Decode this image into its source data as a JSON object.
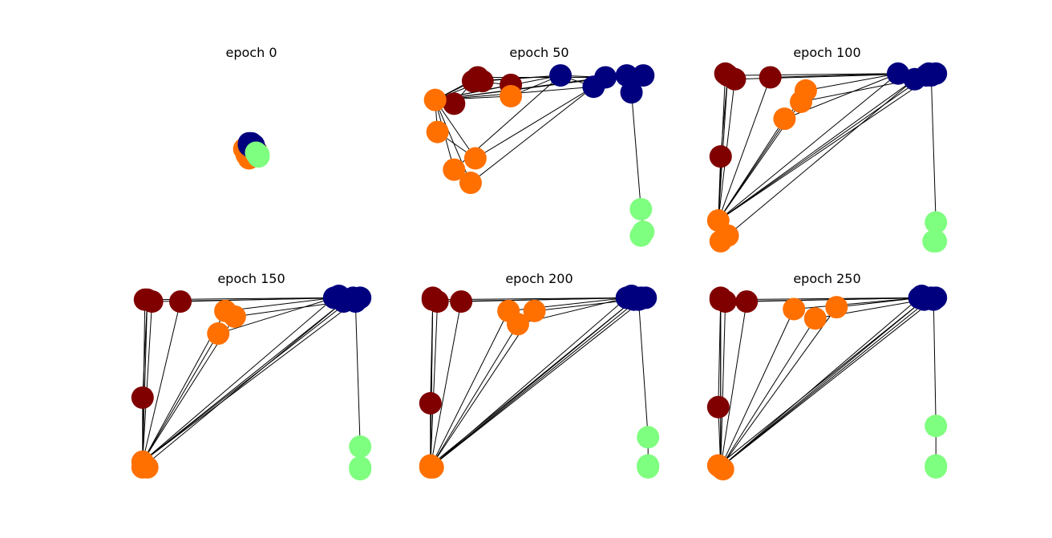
{
  "chart_data": [
    {
      "type": "network",
      "title": "epoch 0",
      "series": [
        {
          "color": "#800000",
          "x": [
            0.5,
            0.51,
            0.52,
            0.49,
            0.5
          ],
          "y": [
            0.55,
            0.56,
            0.54,
            0.55,
            0.57
          ]
        },
        {
          "color": "#ff7000",
          "x": [
            0.48,
            0.49,
            0.47,
            0.48,
            0.5,
            0.49
          ],
          "y": [
            0.54,
            0.5,
            0.55,
            0.52,
            0.53,
            0.56
          ]
        },
        {
          "color": "#00007f",
          "x": [
            0.49,
            0.5,
            0.5,
            0.51,
            0.49,
            0.5
          ],
          "y": [
            0.57,
            0.58,
            0.56,
            0.57,
            0.58,
            0.57
          ]
        },
        {
          "color": "#7fff7f",
          "x": [
            0.53,
            0.52,
            0.53
          ],
          "y": [
            0.52,
            0.53,
            0.51
          ]
        }
      ],
      "edges": [
        [
          5,
          6
        ],
        [
          5,
          7
        ],
        [
          6,
          7
        ],
        [
          5,
          0
        ],
        [
          5,
          1
        ],
        [
          5,
          3
        ],
        [
          5,
          4
        ],
        [
          5,
          2
        ],
        [
          5,
          11
        ],
        [
          5,
          12
        ],
        [
          5,
          13
        ],
        [
          5,
          14
        ],
        [
          5,
          8
        ],
        [
          5,
          9
        ],
        [
          5,
          10
        ],
        [
          0,
          11
        ],
        [
          1,
          13
        ],
        [
          2,
          11
        ],
        [
          8,
          11
        ],
        [
          9,
          12
        ],
        [
          10,
          11
        ],
        [
          3,
          0
        ],
        [
          4,
          0
        ],
        [
          11,
          12
        ],
        [
          11,
          13
        ],
        [
          13,
          14
        ],
        [
          14,
          15
        ],
        [
          15,
          16
        ],
        [
          16,
          17
        ],
        [
          17,
          18
        ],
        [
          18,
          19
        ],
        [
          7,
          12
        ]
      ]
    },
    {
      "type": "network",
      "title": "epoch 50",
      "series": [
        {
          "color": "#800000",
          "x": [
            0.22,
            0.24,
            0.26,
            0.38,
            0.14
          ],
          "y": [
            0.91,
            0.93,
            0.91,
            0.89,
            0.79
          ]
        },
        {
          "color": "#ff7000",
          "x": [
            0.06,
            0.07,
            0.23,
            0.14,
            0.21,
            0.38
          ],
          "y": [
            0.81,
            0.64,
            0.5,
            0.44,
            0.37,
            0.83
          ]
        },
        {
          "color": "#00007f",
          "x": [
            0.59,
            0.73,
            0.78,
            0.87,
            0.94,
            0.89
          ],
          "y": [
            0.94,
            0.88,
            0.93,
            0.94,
            0.94,
            0.85
          ]
        },
        {
          "color": "#7fff7f",
          "x": [
            0.93,
            0.94,
            0.93
          ],
          "y": [
            0.23,
            0.11,
            0.09
          ]
        }
      ],
      "edges": [
        [
          5,
          6
        ],
        [
          5,
          7
        ],
        [
          6,
          7
        ],
        [
          5,
          0
        ],
        [
          5,
          1
        ],
        [
          5,
          3
        ],
        [
          5,
          4
        ],
        [
          5,
          2
        ],
        [
          5,
          11
        ],
        [
          5,
          12
        ],
        [
          5,
          13
        ],
        [
          5,
          14
        ],
        [
          5,
          8
        ],
        [
          5,
          9
        ],
        [
          5,
          10
        ],
        [
          0,
          11
        ],
        [
          1,
          13
        ],
        [
          2,
          11
        ],
        [
          8,
          11
        ],
        [
          9,
          12
        ],
        [
          10,
          11
        ],
        [
          3,
          0
        ],
        [
          4,
          0
        ],
        [
          11,
          12
        ],
        [
          11,
          13
        ],
        [
          13,
          14
        ],
        [
          14,
          15
        ],
        [
          15,
          16
        ],
        [
          16,
          17
        ],
        [
          17,
          18
        ],
        [
          18,
          19
        ],
        [
          7,
          12
        ]
      ]
    },
    {
      "type": "network",
      "title": "epoch 100",
      "series": [
        {
          "color": "#800000",
          "x": [
            0.08,
            0.11,
            0.26,
            0.05,
            0.07
          ],
          "y": [
            0.94,
            0.92,
            0.93,
            0.51,
            0.95
          ]
        },
        {
          "color": "#ff7000",
          "x": [
            0.04,
            0.08,
            0.05,
            0.41,
            0.39,
            0.32
          ],
          "y": [
            0.17,
            0.09,
            0.06,
            0.86,
            0.8,
            0.71
          ]
        },
        {
          "color": "#00007f",
          "x": [
            0.8,
            0.87,
            0.93,
            0.96,
            0.92,
            0.94
          ],
          "y": [
            0.95,
            0.92,
            0.95,
            0.95,
            0.94,
            0.94
          ]
        },
        {
          "color": "#7fff7f",
          "x": [
            0.96,
            0.95,
            0.96
          ],
          "y": [
            0.16,
            0.06,
            0.06
          ]
        }
      ],
      "edges": [
        [
          5,
          6
        ],
        [
          5,
          7
        ],
        [
          6,
          7
        ],
        [
          5,
          0
        ],
        [
          5,
          1
        ],
        [
          5,
          3
        ],
        [
          5,
          4
        ],
        [
          5,
          2
        ],
        [
          5,
          11
        ],
        [
          5,
          12
        ],
        [
          5,
          13
        ],
        [
          5,
          14
        ],
        [
          5,
          8
        ],
        [
          5,
          9
        ],
        [
          5,
          10
        ],
        [
          0,
          11
        ],
        [
          1,
          13
        ],
        [
          2,
          11
        ],
        [
          8,
          11
        ],
        [
          9,
          12
        ],
        [
          10,
          11
        ],
        [
          3,
          0
        ],
        [
          4,
          0
        ],
        [
          11,
          12
        ],
        [
          11,
          13
        ],
        [
          13,
          14
        ],
        [
          14,
          15
        ],
        [
          15,
          16
        ],
        [
          16,
          17
        ],
        [
          17,
          18
        ],
        [
          18,
          19
        ],
        [
          7,
          12
        ]
      ]
    },
    {
      "type": "network",
      "title": "epoch 150",
      "series": [
        {
          "color": "#800000",
          "x": [
            0.06,
            0.08,
            0.2,
            0.04,
            0.05
          ],
          "y": [
            0.95,
            0.94,
            0.94,
            0.43,
            0.95
          ]
        },
        {
          "color": "#ff7000",
          "x": [
            0.04,
            0.06,
            0.04,
            0.39,
            0.43,
            0.36
          ],
          "y": [
            0.09,
            0.06,
            0.06,
            0.89,
            0.86,
            0.77
          ]
        },
        {
          "color": "#00007f",
          "x": [
            0.85,
            0.89,
            0.93,
            0.96,
            0.87,
            0.94
          ],
          "y": [
            0.96,
            0.94,
            0.96,
            0.96,
            0.97,
            0.94
          ]
        },
        {
          "color": "#7fff7f",
          "x": [
            0.96,
            0.96,
            0.96
          ],
          "y": [
            0.17,
            0.06,
            0.05
          ]
        }
      ],
      "edges": [
        [
          5,
          6
        ],
        [
          5,
          7
        ],
        [
          6,
          7
        ],
        [
          5,
          0
        ],
        [
          5,
          1
        ],
        [
          5,
          3
        ],
        [
          5,
          4
        ],
        [
          5,
          2
        ],
        [
          5,
          11
        ],
        [
          5,
          12
        ],
        [
          5,
          13
        ],
        [
          5,
          14
        ],
        [
          5,
          8
        ],
        [
          5,
          9
        ],
        [
          5,
          10
        ],
        [
          0,
          11
        ],
        [
          1,
          13
        ],
        [
          2,
          11
        ],
        [
          8,
          11
        ],
        [
          9,
          12
        ],
        [
          10,
          11
        ],
        [
          3,
          0
        ],
        [
          4,
          0
        ],
        [
          11,
          12
        ],
        [
          11,
          13
        ],
        [
          13,
          14
        ],
        [
          14,
          15
        ],
        [
          15,
          16
        ],
        [
          16,
          17
        ],
        [
          17,
          18
        ],
        [
          18,
          19
        ],
        [
          7,
          12
        ]
      ]
    },
    {
      "type": "network",
      "title": "epoch 200",
      "series": [
        {
          "color": "#800000",
          "x": [
            0.05,
            0.07,
            0.17,
            0.04,
            0.05
          ],
          "y": [
            0.95,
            0.94,
            0.94,
            0.4,
            0.96
          ]
        },
        {
          "color": "#ff7000",
          "x": [
            0.04,
            0.05,
            0.04,
            0.37,
            0.48,
            0.41
          ],
          "y": [
            0.06,
            0.06,
            0.07,
            0.89,
            0.89,
            0.82
          ]
        },
        {
          "color": "#00007f",
          "x": [
            0.87,
            0.9,
            0.93,
            0.95,
            0.89,
            0.92
          ],
          "y": [
            0.96,
            0.95,
            0.96,
            0.96,
            0.97,
            0.95
          ]
        },
        {
          "color": "#7fff7f",
          "x": [
            0.96,
            0.96,
            0.96
          ],
          "y": [
            0.22,
            0.07,
            0.06
          ]
        }
      ],
      "edges": [
        [
          5,
          6
        ],
        [
          5,
          7
        ],
        [
          6,
          7
        ],
        [
          5,
          0
        ],
        [
          5,
          1
        ],
        [
          5,
          3
        ],
        [
          5,
          4
        ],
        [
          5,
          2
        ],
        [
          5,
          11
        ],
        [
          5,
          12
        ],
        [
          5,
          13
        ],
        [
          5,
          14
        ],
        [
          5,
          8
        ],
        [
          5,
          9
        ],
        [
          5,
          10
        ],
        [
          0,
          11
        ],
        [
          1,
          13
        ],
        [
          2,
          11
        ],
        [
          8,
          11
        ],
        [
          9,
          12
        ],
        [
          10,
          11
        ],
        [
          3,
          0
        ],
        [
          4,
          0
        ],
        [
          11,
          12
        ],
        [
          11,
          13
        ],
        [
          13,
          14
        ],
        [
          14,
          15
        ],
        [
          15,
          16
        ],
        [
          16,
          17
        ],
        [
          17,
          18
        ],
        [
          18,
          19
        ],
        [
          7,
          12
        ]
      ]
    },
    {
      "type": "network",
      "title": "epoch 250",
      "series": [
        {
          "color": "#800000",
          "x": [
            0.05,
            0.07,
            0.16,
            0.04,
            0.05
          ],
          "y": [
            0.95,
            0.94,
            0.94,
            0.38,
            0.96
          ]
        },
        {
          "color": "#ff7000",
          "x": [
            0.05,
            0.06,
            0.04,
            0.36,
            0.45,
            0.54
          ],
          "y": [
            0.06,
            0.05,
            0.07,
            0.9,
            0.85,
            0.91
          ]
        },
        {
          "color": "#00007f",
          "x": [
            0.89,
            0.91,
            0.94,
            0.96,
            0.9,
            0.95
          ],
          "y": [
            0.96,
            0.95,
            0.96,
            0.96,
            0.97,
            0.95
          ]
        },
        {
          "color": "#7fff7f",
          "x": [
            0.96,
            0.96,
            0.96
          ],
          "y": [
            0.28,
            0.07,
            0.06
          ]
        }
      ],
      "edges": [
        [
          5,
          6
        ],
        [
          5,
          7
        ],
        [
          6,
          7
        ],
        [
          5,
          0
        ],
        [
          5,
          1
        ],
        [
          5,
          3
        ],
        [
          5,
          4
        ],
        [
          5,
          2
        ],
        [
          5,
          11
        ],
        [
          5,
          12
        ],
        [
          5,
          13
        ],
        [
          5,
          14
        ],
        [
          5,
          8
        ],
        [
          5,
          9
        ],
        [
          5,
          10
        ],
        [
          0,
          11
        ],
        [
          1,
          13
        ],
        [
          2,
          11
        ],
        [
          8,
          11
        ],
        [
          9,
          12
        ],
        [
          10,
          11
        ],
        [
          3,
          0
        ],
        [
          4,
          0
        ],
        [
          11,
          12
        ],
        [
          11,
          13
        ],
        [
          13,
          14
        ],
        [
          14,
          15
        ],
        [
          15,
          16
        ],
        [
          16,
          17
        ],
        [
          17,
          18
        ],
        [
          18,
          19
        ],
        [
          7,
          12
        ]
      ]
    }
  ]
}
